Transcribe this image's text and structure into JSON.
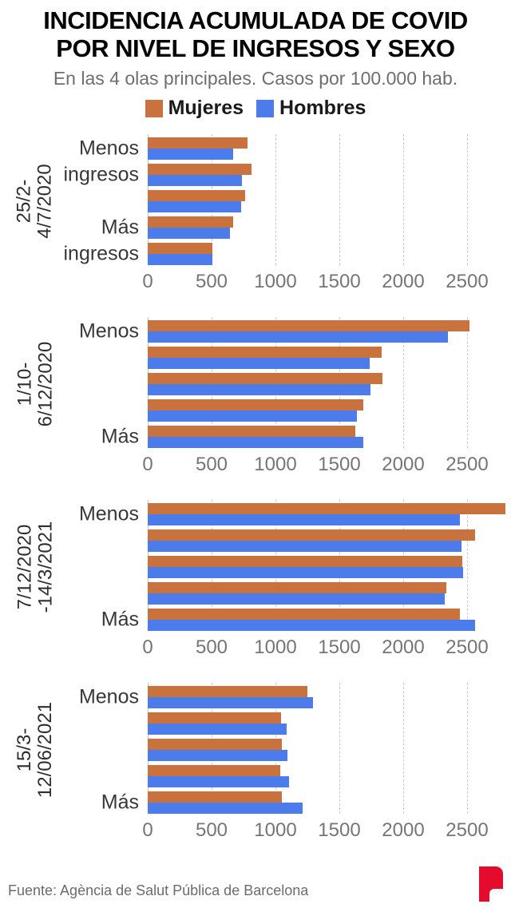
{
  "header": {
    "title_line1": "INCIDENCIA ACUMULADA DE COVID",
    "title_line2": "POR NIVEL DE INGRESOS Y SEXO",
    "subtitle": "En las 4 olas principales. Casos por 100.000 hab."
  },
  "legend": [
    {
      "label": "Mujeres",
      "color": "#c9723d"
    },
    {
      "label": "Hombres",
      "color": "#4c7bec"
    }
  ],
  "footer": {
    "source": "Fuente: Agència de Salut Pública de Barcelona",
    "logo": "P-logo",
    "logo_color": "#e40b2c"
  },
  "colors": {
    "mujeres": "#c9723d",
    "hombres": "#4c7bec",
    "grid": "#c9c9c9",
    "axis_text": "#757575"
  },
  "chart_data": {
    "type": "bar",
    "orientation": "horizontal",
    "title": "Incidencia acumulada de COVID por nivel de ingresos y sexo",
    "unit": "Casos por 100.000 hab.",
    "series_names": [
      "Mujeres",
      "Hombres"
    ],
    "x_ticks": [
      0,
      500,
      1000,
      1500,
      2000,
      2500
    ],
    "xlim": [
      0,
      2845
    ],
    "grid": "dashed-vertical",
    "income_axis_note": "5 grupos de ingresos, de Menos ingresos (arriba) a Más ingresos (abajo)",
    "panels": [
      {
        "wave_label_line1": "25/2-",
        "wave_label_line2": "4/7/2020",
        "row_labels": [
          "Menos",
          "ingresos",
          "",
          "Más",
          "ingresos"
        ],
        "values": [
          [
            780,
            670
          ],
          [
            810,
            735
          ],
          [
            760,
            730
          ],
          [
            670,
            645
          ],
          [
            505,
            505
          ]
        ]
      },
      {
        "wave_label_line1": "1/10-",
        "wave_label_line2": "6/12/2020",
        "row_labels": [
          "Menos",
          "",
          "",
          "",
          "Más"
        ],
        "values": [
          [
            2520,
            2350
          ],
          [
            1830,
            1740
          ],
          [
            1835,
            1745
          ],
          [
            1685,
            1640
          ],
          [
            1625,
            1690
          ]
        ]
      },
      {
        "wave_label_line1": "7/12/2020",
        "wave_label_line2": "-14/3/2021",
        "row_labels": [
          "Menos",
          "",
          "",
          "",
          "Más"
        ],
        "values": [
          [
            2800,
            2445
          ],
          [
            2560,
            2455
          ],
          [
            2460,
            2470
          ],
          [
            2340,
            2325
          ],
          [
            2445,
            2560
          ]
        ]
      },
      {
        "wave_label_line1": "15/3-",
        "wave_label_line2": "12/06/2021",
        "row_labels": [
          "Menos",
          "",
          "",
          "",
          "Más"
        ],
        "values": [
          [
            1250,
            1295
          ],
          [
            1045,
            1085
          ],
          [
            1050,
            1095
          ],
          [
            1035,
            1105
          ],
          [
            1050,
            1215
          ]
        ]
      }
    ]
  }
}
